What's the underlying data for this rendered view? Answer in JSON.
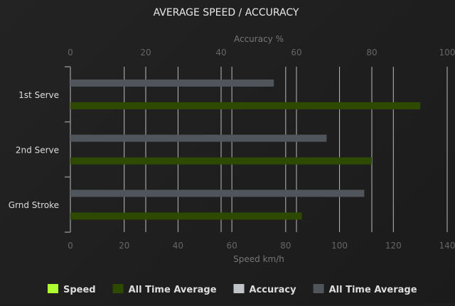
{
  "chart_data": {
    "type": "bar",
    "orientation": "horizontal",
    "title": "AVERAGE SPEED / ACCURACY",
    "categories": [
      "1st Serve",
      "2nd Serve",
      "Grnd Stroke"
    ],
    "top_axis": {
      "label": "Accuracy %",
      "range": [
        0,
        100
      ],
      "ticks": [
        0,
        20,
        40,
        60,
        80,
        100
      ]
    },
    "bottom_axis": {
      "label": "Speed km/h",
      "range": [
        0,
        140
      ],
      "ticks": [
        0,
        20,
        40,
        60,
        80,
        100,
        120,
        140
      ]
    },
    "series": [
      {
        "name": "All Time Average",
        "axis": "accuracy",
        "color": "#50555c",
        "values": [
          54,
          68,
          78
        ]
      },
      {
        "name": "All Time Average",
        "axis": "speed",
        "color": "#2e4a00",
        "values": [
          130,
          112,
          86
        ]
      }
    ],
    "legend": {
      "placement": "bottom",
      "items": [
        {
          "label": "Speed",
          "color": "#adff2f"
        },
        {
          "label": "All Time Average",
          "color": "#2e4a00"
        },
        {
          "label": "Accuracy",
          "color": "#c0c4c8"
        },
        {
          "label": "All Time Average",
          "color": "#50555c"
        }
      ]
    },
    "grid": true
  }
}
